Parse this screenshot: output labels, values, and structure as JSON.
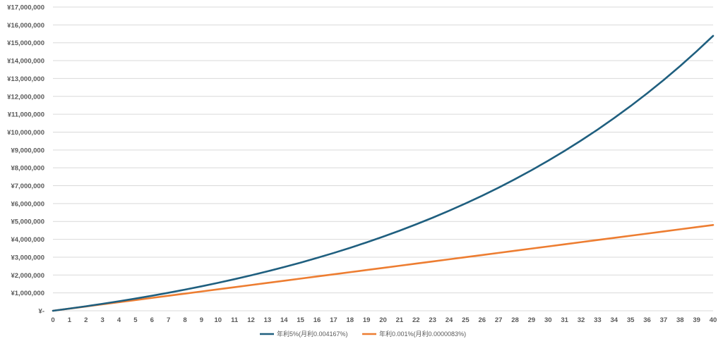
{
  "chart_data": {
    "type": "line",
    "title": "",
    "xlabel": "",
    "ylabel": "",
    "x": [
      0,
      1,
      2,
      3,
      4,
      5,
      6,
      7,
      8,
      9,
      10,
      11,
      12,
      13,
      14,
      15,
      16,
      17,
      18,
      19,
      20,
      21,
      22,
      23,
      24,
      25,
      26,
      27,
      28,
      29,
      30,
      31,
      32,
      33,
      34,
      35,
      36,
      37,
      38,
      39,
      40
    ],
    "xlim": [
      0,
      40
    ],
    "ylim": [
      0,
      17000000
    ],
    "y_ticks": [
      0,
      1000000,
      2000000,
      3000000,
      4000000,
      5000000,
      6000000,
      7000000,
      8000000,
      9000000,
      10000000,
      11000000,
      12000000,
      13000000,
      14000000,
      15000000,
      16000000,
      17000000
    ],
    "y_tick_labels": [
      "¥-",
      "¥1,000,000",
      "¥2,000,000",
      "¥3,000,000",
      "¥4,000,000",
      "¥5,000,000",
      "¥6,000,000",
      "¥7,000,000",
      "¥8,000,000",
      "¥9,000,000",
      "¥10,000,000",
      "¥11,000,000",
      "¥12,000,000",
      "¥13,000,000",
      "¥14,000,000",
      "¥15,000,000",
      "¥16,000,000",
      "¥17,000,000"
    ],
    "grid": true,
    "legend_position": "bottom",
    "series": [
      {
        "name": "年利5%(月利0.004167%)",
        "color": "#1f5f7f",
        "values": [
          0,
          123000,
          252000,
          389000,
          532000,
          682000,
          841000,
          1008000,
          1184000,
          1369000,
          1563000,
          1767000,
          1982000,
          2208000,
          2445000,
          2694000,
          2956000,
          3232000,
          3522000,
          3826000,
          4146000,
          4482000,
          4836000,
          5207000,
          5597000,
          6007000,
          6438000,
          6891000,
          7368000,
          7869000,
          8395000,
          8949000,
          9530000,
          10141000,
          10784000,
          11459000,
          12168000,
          12914000,
          13698000,
          14522000,
          15388000
        ]
      },
      {
        "name": "年利0.001%(月利0.0000083%)",
        "color": "#ed7d31",
        "values": [
          0,
          120000,
          240000,
          360000,
          480000,
          600000,
          720000,
          840000,
          960000,
          1080000,
          1200000,
          1320000,
          1440000,
          1560000,
          1680000,
          1800000,
          1920000,
          2040000,
          2160000,
          2280000,
          2400000,
          2520000,
          2640000,
          2760000,
          2880000,
          3000000,
          3120000,
          3240000,
          3360000,
          3480000,
          3600000,
          3720000,
          3840000,
          3960000,
          4080000,
          4200000,
          4320000,
          4440000,
          4560000,
          4680000,
          4800000
        ]
      }
    ]
  }
}
